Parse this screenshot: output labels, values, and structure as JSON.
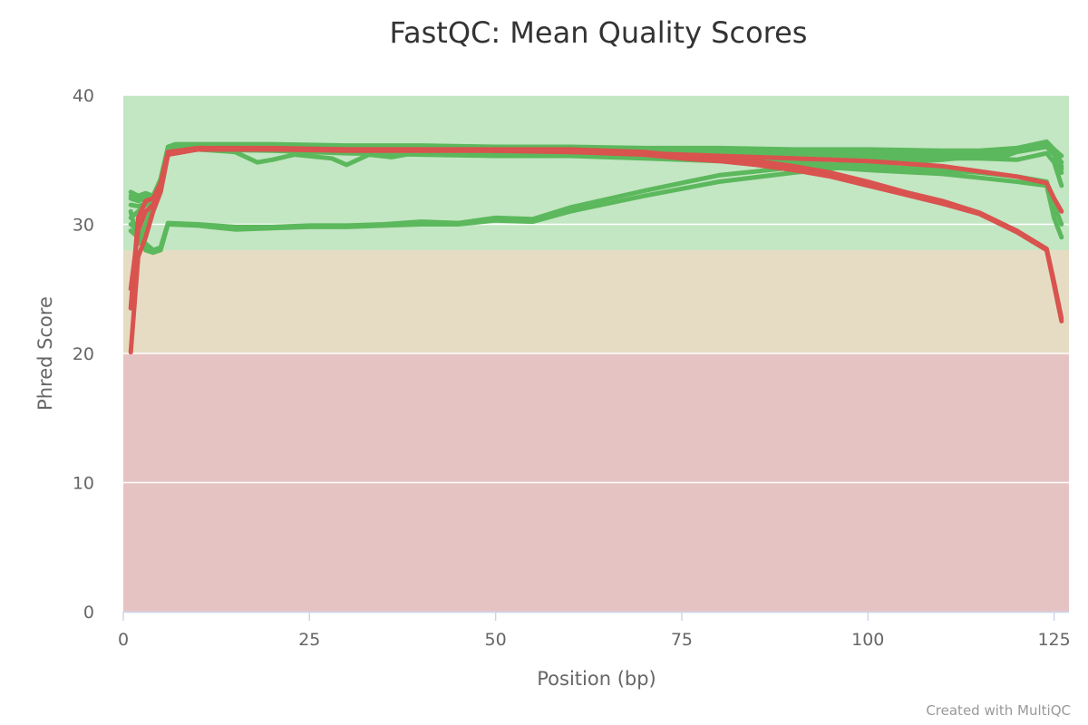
{
  "chart_data": {
    "type": "line",
    "title": "FastQC: Mean Quality Scores",
    "xlabel": "Position (bp)",
    "ylabel": "Phred Score",
    "xlim": [
      0,
      127
    ],
    "ylim": [
      0,
      40
    ],
    "xticks": [
      0,
      25,
      50,
      75,
      100,
      125
    ],
    "yticks": [
      0,
      10,
      20,
      30,
      40
    ],
    "bands": [
      {
        "from": 0,
        "to": 20,
        "color": "#e6c3c3"
      },
      {
        "from": 20,
        "to": 28,
        "color": "#e6dcc3"
      },
      {
        "from": 28,
        "to": 40,
        "color": "#c3e6c3"
      }
    ],
    "series": [
      {
        "color": "#5cb85c",
        "points": [
          [
            1,
            32.5
          ],
          [
            2,
            32.2
          ],
          [
            3,
            32.4
          ],
          [
            4,
            32.2
          ],
          [
            5,
            33.5
          ],
          [
            6,
            36.0
          ],
          [
            7,
            36.2
          ],
          [
            10,
            36.2
          ],
          [
            20,
            36.2
          ],
          [
            30,
            36.1
          ],
          [
            40,
            36.1
          ],
          [
            50,
            36.0
          ],
          [
            60,
            36.0
          ],
          [
            70,
            35.9
          ],
          [
            80,
            35.9
          ],
          [
            90,
            35.8
          ],
          [
            100,
            35.8
          ],
          [
            110,
            35.7
          ],
          [
            115,
            35.7
          ],
          [
            120,
            35.9
          ],
          [
            124,
            36.3
          ],
          [
            125,
            35.8
          ],
          [
            126,
            35.3
          ]
        ]
      },
      {
        "color": "#5cb85c",
        "points": [
          [
            1,
            32.0
          ],
          [
            2,
            31.8
          ],
          [
            3,
            32.0
          ],
          [
            4,
            31.9
          ],
          [
            5,
            33.2
          ],
          [
            6,
            35.8
          ],
          [
            7,
            36.0
          ],
          [
            10,
            36.0
          ],
          [
            20,
            36.0
          ],
          [
            30,
            35.9
          ],
          [
            40,
            35.9
          ],
          [
            50,
            35.8
          ],
          [
            60,
            35.8
          ],
          [
            70,
            35.7
          ],
          [
            80,
            35.6
          ],
          [
            90,
            35.6
          ],
          [
            100,
            35.5
          ],
          [
            110,
            35.5
          ],
          [
            115,
            35.6
          ],
          [
            120,
            35.8
          ],
          [
            124,
            36.1
          ],
          [
            125,
            35.5
          ],
          [
            126,
            34.8
          ]
        ]
      },
      {
        "color": "#5cb85c",
        "points": [
          [
            1,
            31.5
          ],
          [
            2,
            31.4
          ],
          [
            3,
            31.6
          ],
          [
            4,
            31.7
          ],
          [
            5,
            32.8
          ],
          [
            6,
            35.5
          ],
          [
            7,
            35.7
          ],
          [
            10,
            35.8
          ],
          [
            15,
            35.6
          ],
          [
            18,
            34.8
          ],
          [
            20,
            35.0
          ],
          [
            23,
            35.4
          ],
          [
            28,
            35.1
          ],
          [
            30,
            34.6
          ],
          [
            33,
            35.4
          ],
          [
            36,
            35.2
          ],
          [
            40,
            35.6
          ],
          [
            50,
            35.6
          ],
          [
            60,
            35.7
          ],
          [
            70,
            35.6
          ],
          [
            80,
            35.5
          ],
          [
            90,
            35.5
          ],
          [
            100,
            35.4
          ],
          [
            110,
            35.4
          ],
          [
            115,
            35.5
          ],
          [
            118,
            35.2
          ],
          [
            120,
            35.6
          ],
          [
            124,
            36.0
          ],
          [
            125,
            35.4
          ],
          [
            126,
            34.5
          ]
        ]
      },
      {
        "color": "#5cb85c",
        "points": [
          [
            1,
            32.2
          ],
          [
            2,
            32.0
          ],
          [
            3,
            32.1
          ],
          [
            4,
            32.0
          ],
          [
            5,
            33.0
          ],
          [
            6,
            35.7
          ],
          [
            10,
            35.9
          ],
          [
            20,
            35.8
          ],
          [
            30,
            35.6
          ],
          [
            40,
            35.6
          ],
          [
            50,
            35.4
          ],
          [
            55,
            35.3
          ],
          [
            60,
            35.6
          ],
          [
            70,
            35.3
          ],
          [
            80,
            35.1
          ],
          [
            90,
            34.8
          ],
          [
            100,
            34.5
          ],
          [
            110,
            34.2
          ],
          [
            115,
            34.0
          ],
          [
            120,
            33.7
          ],
          [
            124,
            33.3
          ],
          [
            125,
            31.5
          ],
          [
            126,
            30.0
          ]
        ]
      },
      {
        "color": "#5cb85c",
        "points": [
          [
            1,
            30.5
          ],
          [
            2,
            31.0
          ],
          [
            3,
            31.5
          ],
          [
            4,
            31.8
          ],
          [
            5,
            32.8
          ],
          [
            6,
            35.5
          ],
          [
            10,
            35.8
          ],
          [
            20,
            35.7
          ],
          [
            30,
            35.5
          ],
          [
            40,
            35.4
          ],
          [
            50,
            35.3
          ],
          [
            60,
            35.3
          ],
          [
            70,
            35.1
          ],
          [
            80,
            34.9
          ],
          [
            90,
            34.6
          ],
          [
            100,
            34.2
          ],
          [
            110,
            33.9
          ],
          [
            115,
            33.6
          ],
          [
            120,
            33.3
          ],
          [
            124,
            33.0
          ],
          [
            125,
            30.5
          ],
          [
            126,
            29.0
          ]
        ]
      },
      {
        "color": "#5cb85c",
        "points": [
          [
            1,
            31.0
          ],
          [
            2,
            28.5
          ],
          [
            3,
            30.0
          ],
          [
            4,
            31.5
          ],
          [
            5,
            32.5
          ],
          [
            6,
            35.6
          ],
          [
            10,
            35.9
          ],
          [
            20,
            35.8
          ],
          [
            30,
            35.7
          ],
          [
            40,
            35.6
          ],
          [
            50,
            35.5
          ],
          [
            60,
            35.5
          ],
          [
            70,
            35.4
          ],
          [
            80,
            35.3
          ],
          [
            90,
            35.2
          ],
          [
            100,
            35.2
          ],
          [
            110,
            35.1
          ],
          [
            115,
            35.1
          ],
          [
            120,
            35.0
          ],
          [
            124,
            35.5
          ],
          [
            125,
            34.8
          ],
          [
            126,
            33.0
          ]
        ]
      },
      {
        "color": "#5cb85c",
        "points": [
          [
            1,
            29.5
          ],
          [
            2,
            29.0
          ],
          [
            3,
            28.0
          ],
          [
            4,
            27.8
          ],
          [
            5,
            28.0
          ],
          [
            6,
            30.0
          ],
          [
            10,
            29.9
          ],
          [
            15,
            29.6
          ],
          [
            20,
            29.7
          ],
          [
            25,
            29.8
          ],
          [
            30,
            29.8
          ],
          [
            35,
            29.9
          ],
          [
            40,
            30.0
          ],
          [
            45,
            30.0
          ],
          [
            50,
            30.3
          ],
          [
            55,
            30.2
          ],
          [
            60,
            31.0
          ],
          [
            70,
            32.2
          ],
          [
            80,
            33.3
          ],
          [
            90,
            34.0
          ],
          [
            100,
            34.6
          ],
          [
            110,
            35.0
          ],
          [
            115,
            35.3
          ],
          [
            120,
            35.7
          ],
          [
            124,
            36.3
          ],
          [
            125,
            35.5
          ],
          [
            126,
            34.0
          ]
        ]
      },
      {
        "color": "#5cb85c",
        "points": [
          [
            1,
            30.0
          ],
          [
            2,
            29.5
          ],
          [
            3,
            28.5
          ],
          [
            4,
            28.0
          ],
          [
            5,
            28.2
          ],
          [
            6,
            30.1
          ],
          [
            10,
            30.0
          ],
          [
            15,
            29.8
          ],
          [
            20,
            29.8
          ],
          [
            25,
            29.9
          ],
          [
            30,
            29.9
          ],
          [
            35,
            30.0
          ],
          [
            40,
            30.2
          ],
          [
            45,
            30.1
          ],
          [
            50,
            30.5
          ],
          [
            55,
            30.4
          ],
          [
            60,
            31.3
          ],
          [
            70,
            32.6
          ],
          [
            80,
            33.8
          ],
          [
            90,
            34.4
          ],
          [
            100,
            34.8
          ],
          [
            110,
            35.2
          ],
          [
            115,
            35.5
          ],
          [
            120,
            35.9
          ],
          [
            124,
            36.4
          ],
          [
            125,
            35.8
          ],
          [
            126,
            34.3
          ]
        ]
      },
      {
        "color": "#d9534f",
        "points": [
          [
            1,
            23.5
          ],
          [
            2,
            30.5
          ],
          [
            3,
            31.8
          ],
          [
            4,
            32.0
          ],
          [
            5,
            33.2
          ],
          [
            6,
            35.6
          ],
          [
            10,
            35.9
          ],
          [
            20,
            35.9
          ],
          [
            30,
            35.8
          ],
          [
            40,
            35.8
          ],
          [
            50,
            35.8
          ],
          [
            60,
            35.8
          ],
          [
            70,
            35.6
          ],
          [
            75,
            35.3
          ],
          [
            80,
            35.1
          ],
          [
            85,
            34.9
          ],
          [
            90,
            34.5
          ],
          [
            95,
            34.0
          ],
          [
            100,
            33.3
          ],
          [
            105,
            32.5
          ],
          [
            110,
            31.8
          ],
          [
            115,
            30.9
          ],
          [
            120,
            29.5
          ],
          [
            124,
            28.1
          ],
          [
            125,
            25.5
          ],
          [
            126,
            22.7
          ]
        ]
      },
      {
        "color": "#d9534f",
        "points": [
          [
            1,
            20.1
          ],
          [
            2,
            27.5
          ],
          [
            3,
            29.0
          ],
          [
            4,
            31.0
          ],
          [
            5,
            32.5
          ],
          [
            6,
            35.4
          ],
          [
            10,
            35.8
          ],
          [
            20,
            35.8
          ],
          [
            30,
            35.7
          ],
          [
            40,
            35.7
          ],
          [
            50,
            35.7
          ],
          [
            60,
            35.6
          ],
          [
            70,
            35.4
          ],
          [
            75,
            35.1
          ],
          [
            80,
            34.9
          ],
          [
            85,
            34.6
          ],
          [
            90,
            34.2
          ],
          [
            95,
            33.7
          ],
          [
            100,
            33.0
          ],
          [
            105,
            32.3
          ],
          [
            110,
            31.6
          ],
          [
            115,
            30.8
          ],
          [
            120,
            29.4
          ],
          [
            124,
            28.0
          ],
          [
            125,
            25.3
          ],
          [
            126,
            22.5
          ]
        ]
      },
      {
        "color": "#d9534f",
        "points": [
          [
            1,
            25.0
          ],
          [
            2,
            29.5
          ],
          [
            3,
            31.0
          ],
          [
            4,
            31.5
          ],
          [
            5,
            32.8
          ],
          [
            6,
            35.5
          ],
          [
            10,
            35.8
          ],
          [
            20,
            35.8
          ],
          [
            30,
            35.8
          ],
          [
            40,
            35.8
          ],
          [
            50,
            35.7
          ],
          [
            60,
            35.7
          ],
          [
            70,
            35.5
          ],
          [
            80,
            35.3
          ],
          [
            90,
            35.1
          ],
          [
            100,
            34.9
          ],
          [
            110,
            34.5
          ],
          [
            115,
            34.1
          ],
          [
            120,
            33.7
          ],
          [
            124,
            33.2
          ],
          [
            125,
            32.0
          ],
          [
            126,
            31.0
          ]
        ]
      }
    ]
  },
  "credit": "Created with MultiQC"
}
